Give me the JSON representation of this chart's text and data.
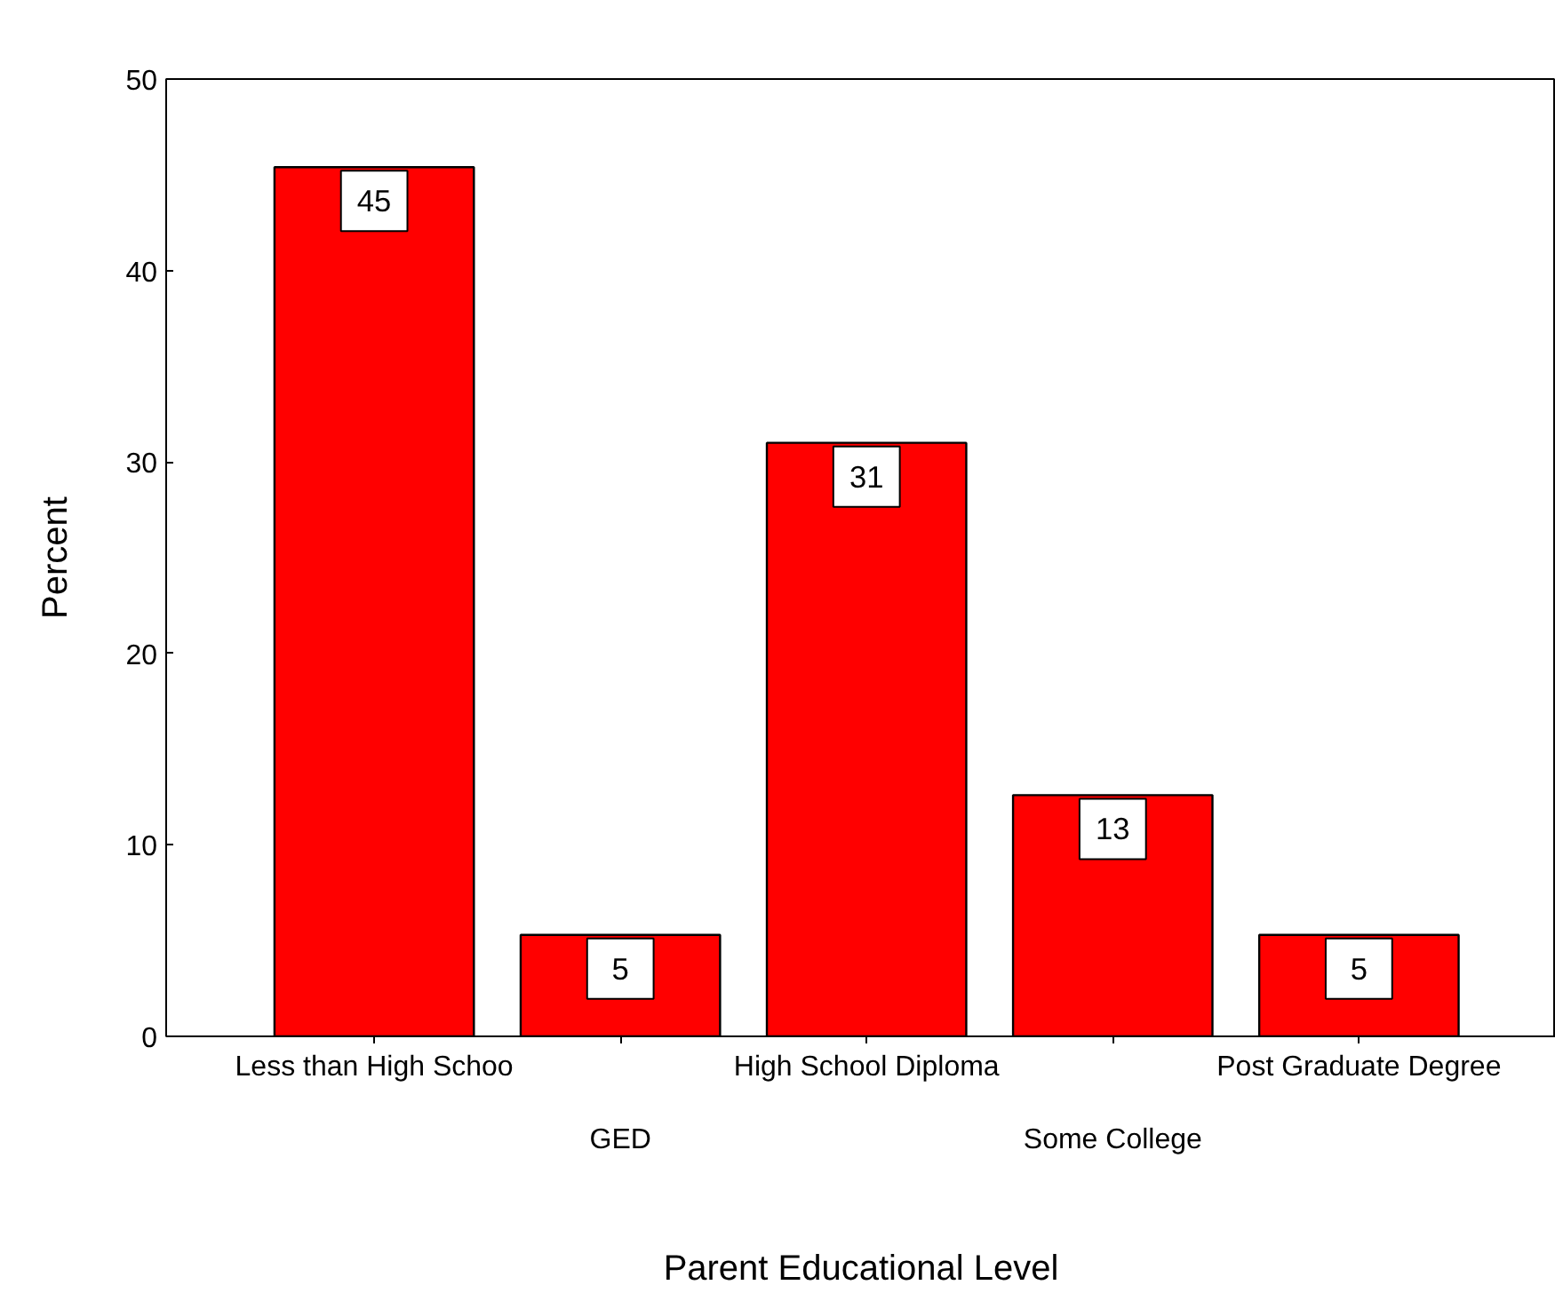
{
  "chart_data": {
    "type": "bar",
    "xlabel": "Parent Educational Level",
    "ylabel": "Percent",
    "categories": [
      "Less than High Schoo",
      "GED",
      "High School Diploma",
      "Some College",
      "Post Graduate Degree"
    ],
    "values": [
      45.4,
      5.3,
      31.0,
      12.6,
      5.3
    ],
    "value_labels": [
      "45",
      "5",
      "31",
      "13",
      "5"
    ],
    "color": "#ff0000",
    "ylim": [
      0,
      50
    ],
    "yticks": [
      0,
      10,
      20,
      30,
      40,
      50
    ],
    "grid": false
  }
}
